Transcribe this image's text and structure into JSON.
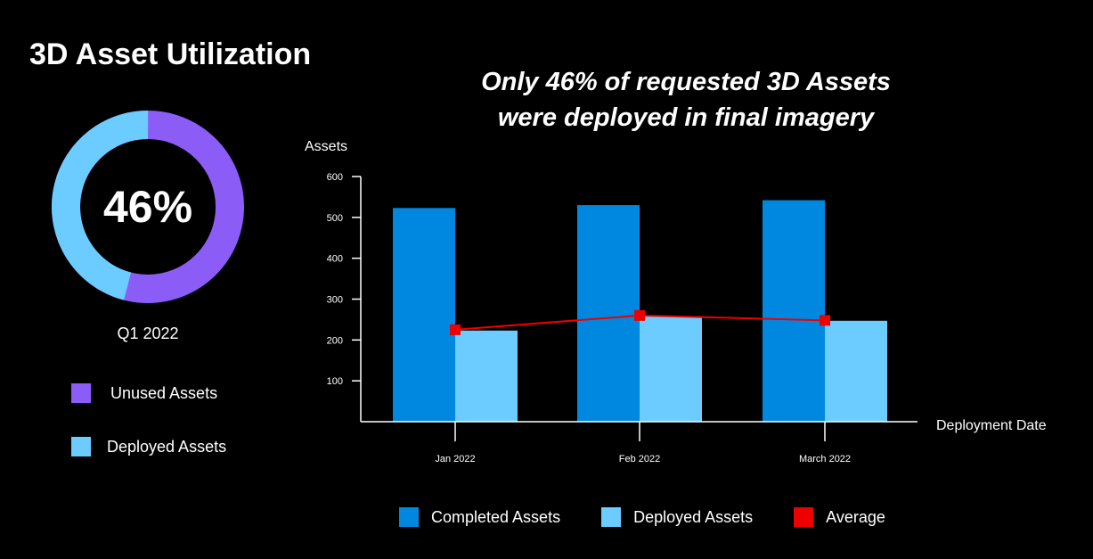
{
  "header": {
    "title": "3D Asset Utilization",
    "headline_line1": "Only 46% of requested 3D Assets",
    "headline_line2": "were deployed in final imagery"
  },
  "donut": {
    "value_label": "46%",
    "period": "Q1 2022",
    "deployed_fraction": 0.46,
    "colors": {
      "unused": "#8B5CF6",
      "deployed": "#6CCCFF"
    }
  },
  "legend_left": [
    {
      "label": "Unused Assets",
      "color": "#8B5CF6"
    },
    {
      "label": "Deployed Assets",
      "color": "#6CCCFF"
    }
  ],
  "chart_data": {
    "type": "bar",
    "categories": [
      "Jan 2022",
      "Feb 2022",
      "March 2022"
    ],
    "series": [
      {
        "name": "Completed Assets",
        "values": [
          523,
          530,
          542
        ],
        "color": "#0088E0"
      },
      {
        "name": "Deployed Assets",
        "values": [
          223,
          258,
          247
        ],
        "color": "#6CCCFF"
      }
    ],
    "line_series": {
      "name": "Average",
      "values": [
        225,
        260,
        248
      ],
      "color": "#EE0000"
    },
    "ylabel": "Assets",
    "xlabel": "Deployment Date",
    "ylim": [
      0,
      600
    ],
    "yticks": [
      100,
      200,
      300,
      400,
      500,
      600
    ],
    "grid": false,
    "legend_position": "bottom"
  },
  "legend_bottom": [
    {
      "label": "Completed Assets",
      "color": "#0088E0"
    },
    {
      "label": "Deployed Assets",
      "color": "#6CCCFF"
    },
    {
      "label": "Average",
      "color": "#EE0000"
    }
  ]
}
